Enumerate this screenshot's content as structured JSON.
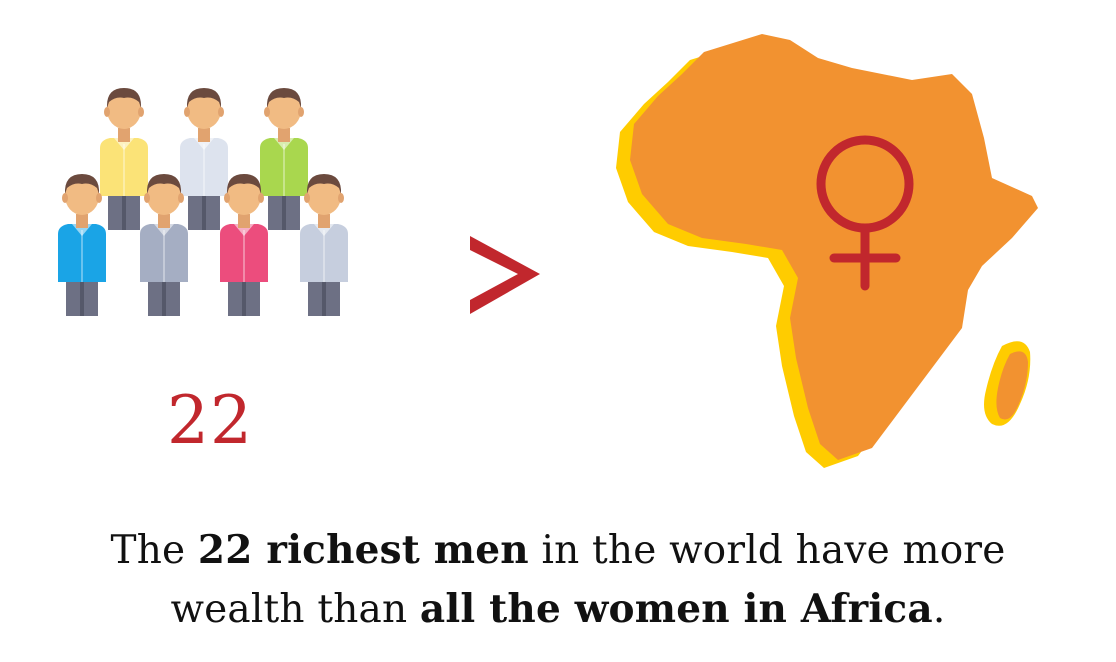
{
  "count": "22",
  "comparison_symbol": ">",
  "caption": {
    "line1": {
      "before": "The ",
      "bold": "22 richest men",
      "after": " in the world have more"
    },
    "line2": {
      "before": "wealth than ",
      "bold": "all the women in Africa",
      "after": "."
    }
  },
  "icons": {
    "men": "group-of-men-icon",
    "africa": "africa-map-icon",
    "female": "female-symbol-icon"
  },
  "colors": {
    "accent_red": "#c1272d",
    "africa_orange": "#f29230",
    "africa_yellow": "#ffcc00",
    "text": "#111111",
    "shirts": [
      "#fbe377",
      "#dde3ee",
      "#a9d74e",
      "#1aa4e6",
      "#a5aec3",
      "#ec4d7d",
      "#c6cede"
    ]
  }
}
